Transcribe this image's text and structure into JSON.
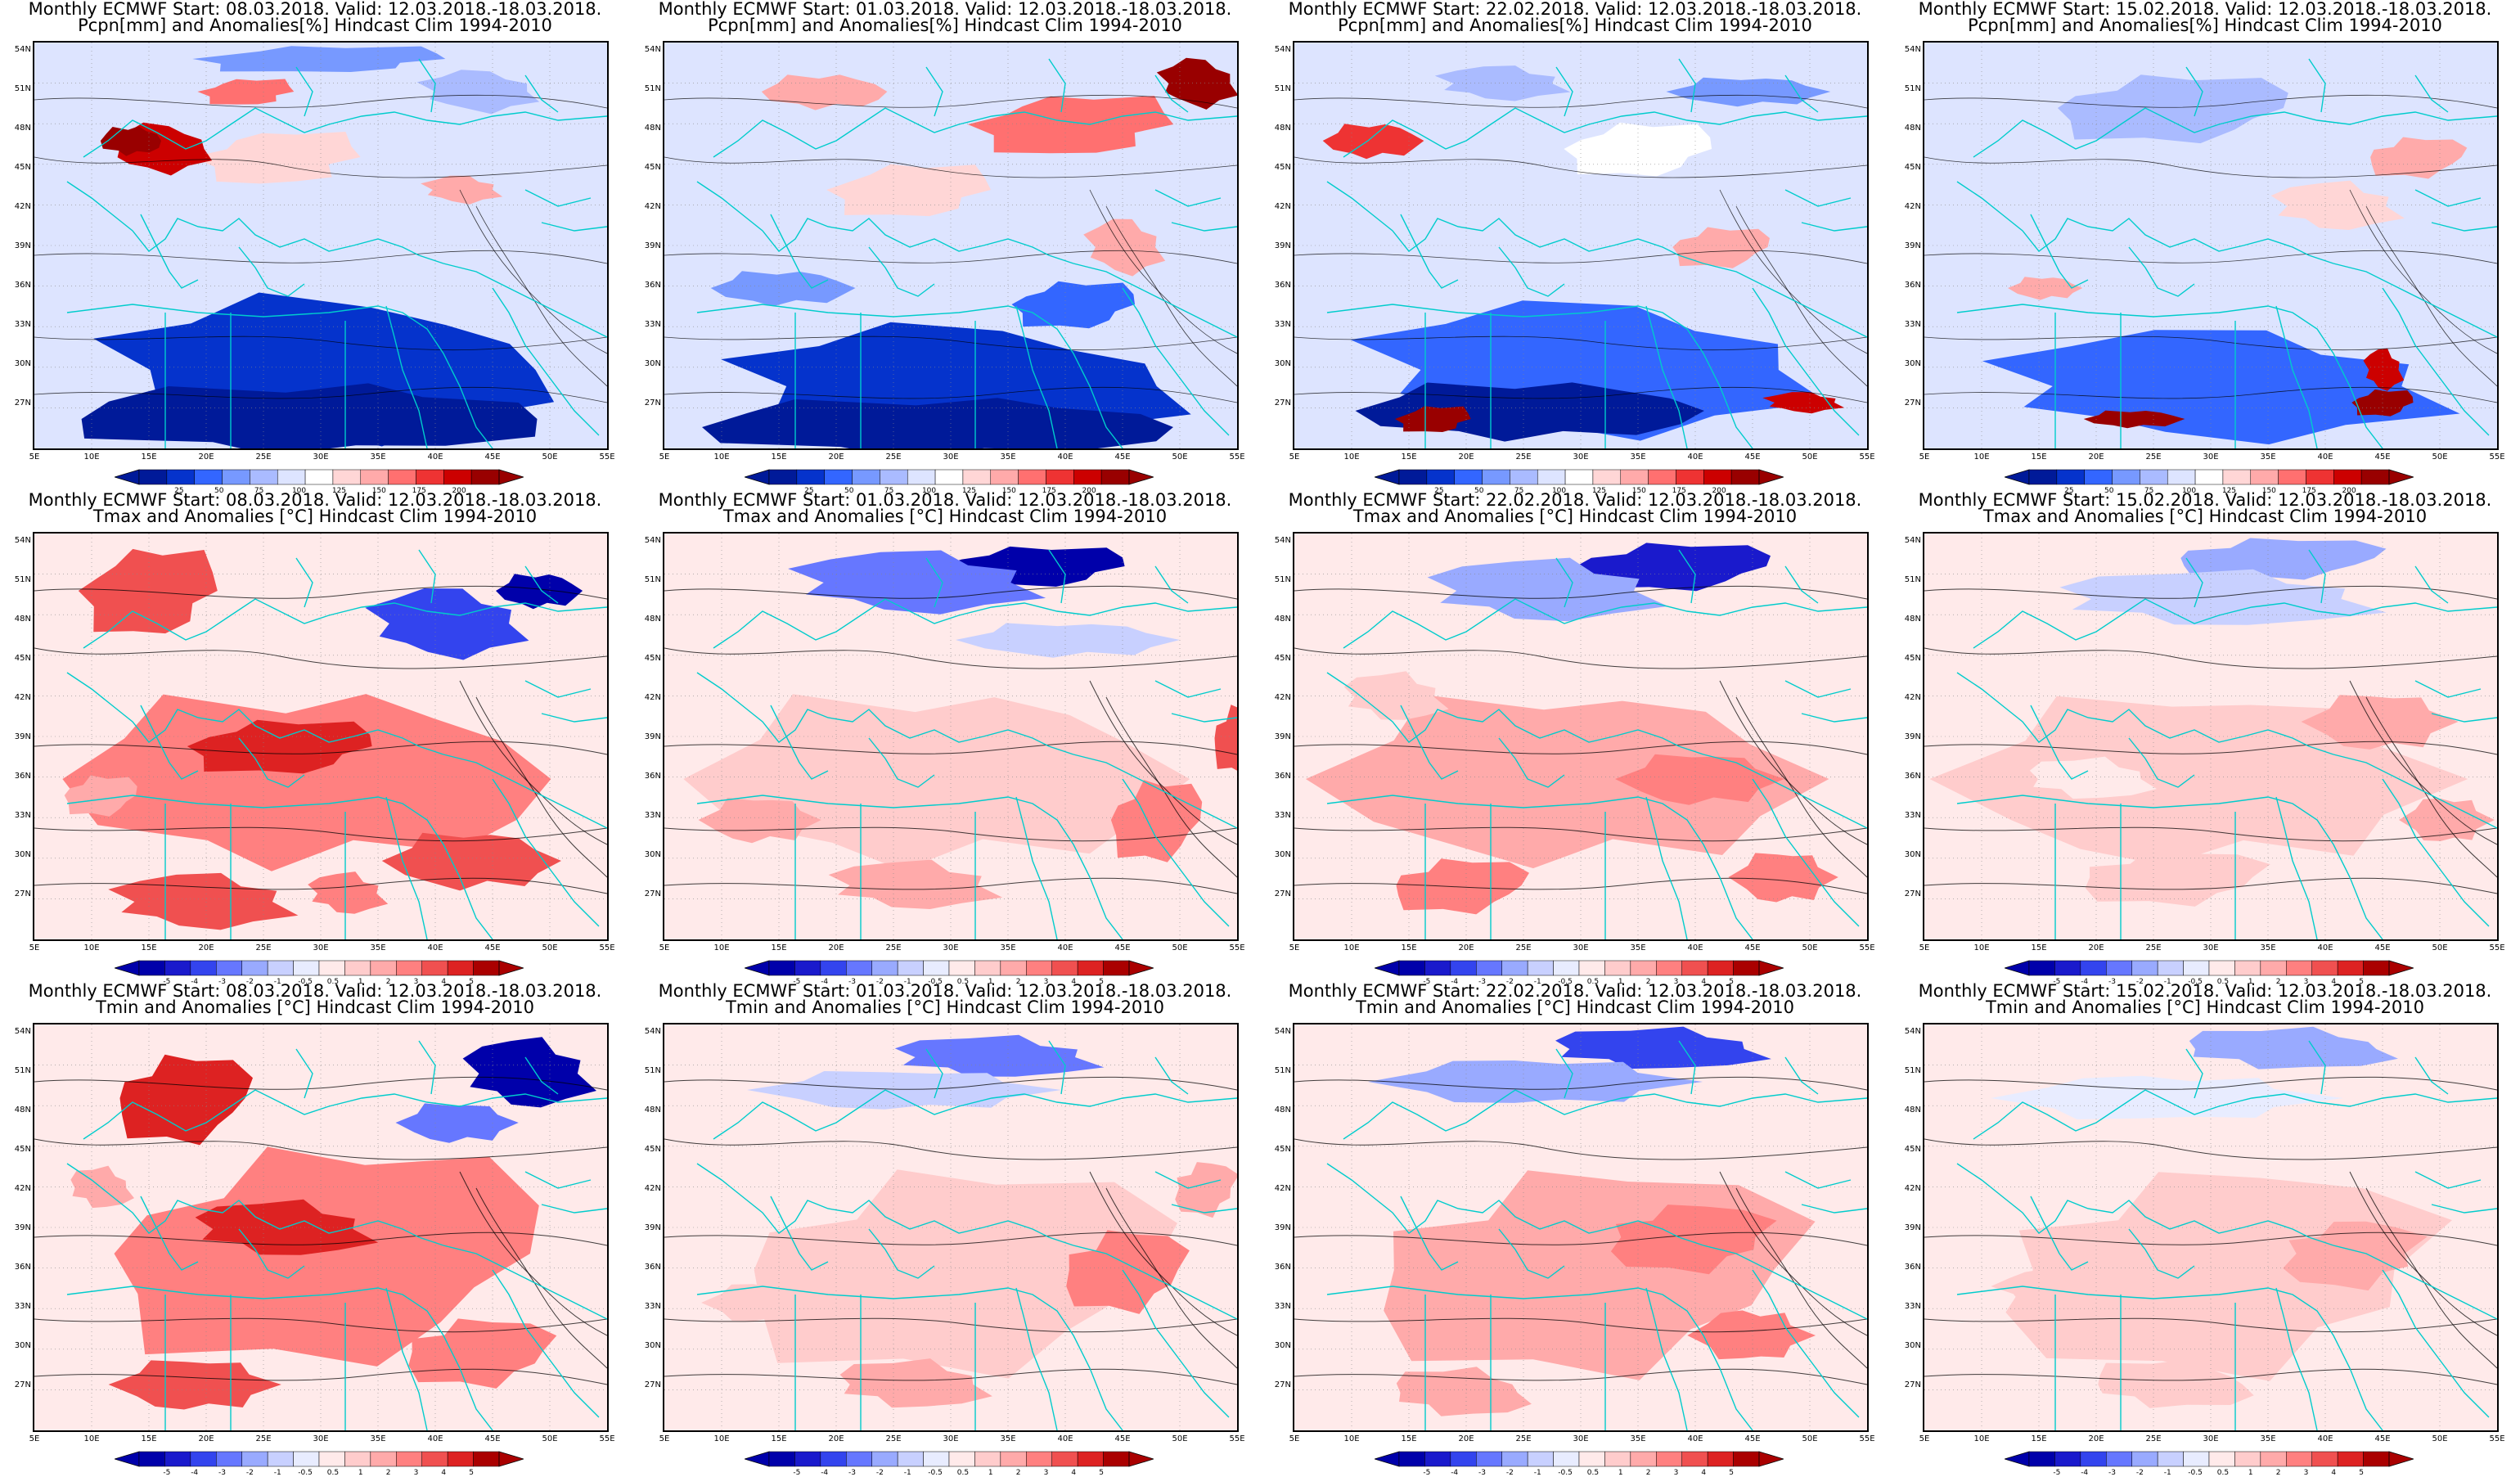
{
  "lat_labels": [
    "54N",
    "51N",
    "48N",
    "45N",
    "42N",
    "39N",
    "36N",
    "33N",
    "30N",
    "27N"
  ],
  "lon_labels": [
    "5E",
    "10E",
    "15E",
    "20E",
    "25E",
    "30E",
    "35E",
    "40E",
    "45E",
    "50E",
    "55E"
  ],
  "colors": {
    "precip_scale": [
      "#001a99",
      "#0533cc",
      "#3366ff",
      "#7799ff",
      "#aabbff",
      "#dde4ff",
      "#ffffff",
      "#ffd6d6",
      "#ffaaaa",
      "#ff7070",
      "#ee3333",
      "#cc0000",
      "#990000"
    ],
    "temp_scale": [
      "#0000aa",
      "#1a1acc",
      "#3344ee",
      "#6677ff",
      "#99aaff",
      "#c8d0ff",
      "#e8ecff",
      "#ffeaea",
      "#ffcccc",
      "#ffaaaa",
      "#ff8080",
      "#f05050",
      "#dd2222",
      "#aa0000"
    ],
    "coastline": "#00cccc",
    "contour": "#000000"
  },
  "rows": [
    {
      "variable_title": "Pcpn[mm] and Anomalies[%] Hindcast Clim 1994-2010",
      "colorbar_ticks": [
        "25",
        "50",
        "75",
        "100",
        "125",
        "150",
        "175",
        "200"
      ],
      "panels": [
        {
          "title": "Monthly ECMWF Start: 08.03.2018. Valid: 12.03.2018.-18.03.2018."
        },
        {
          "title": "Monthly ECMWF Start: 01.03.2018. Valid: 12.03.2018.-18.03.2018."
        },
        {
          "title": "Monthly ECMWF Start: 22.02.2018. Valid: 12.03.2018.-18.03.2018."
        },
        {
          "title": "Monthly ECMWF Start: 15.02.2018. Valid: 12.03.2018.-18.03.2018."
        }
      ]
    },
    {
      "variable_title": "Tmax and Anomalies [°C] Hindcast Clim 1994-2010",
      "colorbar_ticks": [
        "-5",
        "-4",
        "-3",
        "-2",
        "-1",
        "-0.5",
        "0.5",
        "1",
        "2",
        "3",
        "4",
        "5"
      ],
      "panels": [
        {
          "title": "Monthly ECMWF Start: 08.03.2018. Valid: 12.03.2018.-18.03.2018."
        },
        {
          "title": "Monthly ECMWF Start: 01.03.2018. Valid: 12.03.2018.-18.03.2018."
        },
        {
          "title": "Monthly ECMWF Start: 22.02.2018. Valid: 12.03.2018.-18.03.2018."
        },
        {
          "title": "Monthly ECMWF Start: 15.02.2018. Valid: 12.03.2018.-18.03.2018."
        }
      ]
    },
    {
      "variable_title": "Tmin and Anomalies [°C] Hindcast Clim 1994-2010",
      "colorbar_ticks": [
        "-5",
        "-4",
        "-3",
        "-2",
        "-1",
        "-0.5",
        "0.5",
        "1",
        "2",
        "3",
        "4",
        "5"
      ],
      "panels": [
        {
          "title": "Monthly ECMWF Start: 08.03.2018. Valid: 12.03.2018.-18.03.2018."
        },
        {
          "title": "Monthly ECMWF Start: 01.03.2018. Valid: 12.03.2018.-18.03.2018."
        },
        {
          "title": "Monthly ECMWF Start: 22.02.2018. Valid: 12.03.2018.-18.03.2018."
        },
        {
          "title": "Monthly ECMWF Start: 15.02.2018. Valid: 12.03.2018.-18.03.2018."
        }
      ]
    }
  ]
}
